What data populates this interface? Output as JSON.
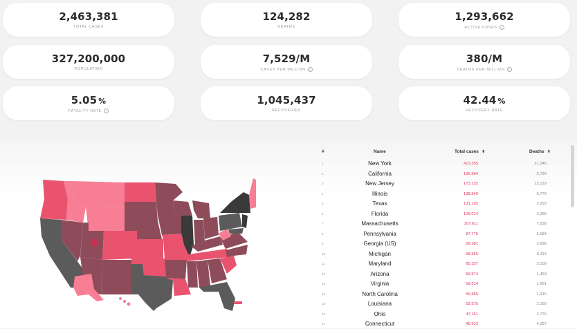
{
  "stats": [
    {
      "value": "2,463,381",
      "unit": "",
      "label": "TOTAL CASES",
      "info": false
    },
    {
      "value": "124,282",
      "unit": "",
      "label": "DEATHS",
      "info": false
    },
    {
      "value": "1,293,662",
      "unit": "",
      "label": "ACTIVE CASES",
      "info": true
    },
    {
      "value": "327,200,000",
      "unit": "",
      "label": "POPULATION",
      "info": false
    },
    {
      "value": "7,529/M",
      "unit": "",
      "label": "CASES PER MILLION",
      "info": true
    },
    {
      "value": "380/M",
      "unit": "",
      "label": "DEATHS PER MILLION",
      "info": true
    },
    {
      "value": "5.05",
      "unit": "%",
      "label": "FATALITY RATE",
      "info": true
    },
    {
      "value": "1,045,437",
      "unit": "",
      "label": "RECOVERIES",
      "info": false
    },
    {
      "value": "42.44",
      "unit": "%",
      "label": "RECOVERY RATE",
      "info": false
    }
  ],
  "table": {
    "headers": {
      "rank": "#",
      "name": "Name",
      "cases": "Total cases",
      "deaths": "Deaths"
    },
    "rows": [
      {
        "rank": "1",
        "name": "New York",
        "cases": "413,355",
        "deaths": "31,346"
      },
      {
        "rank": "2",
        "name": "California",
        "cases": "195,564",
        "deaths": "5,729"
      },
      {
        "rank": "3",
        "name": "New Jersey",
        "cases": "173,132",
        "deaths": "13,129"
      },
      {
        "rank": "4",
        "name": "Illinois",
        "cases": "138,540",
        "deaths": "6,770"
      },
      {
        "rank": "5",
        "name": "Texas",
        "cases": "131,192",
        "deaths": "2,293"
      },
      {
        "rank": "6",
        "name": "Florida",
        "cases": "109,014",
        "deaths": "3,265"
      },
      {
        "rank": "7",
        "name": "Massachusetts",
        "cases": "107,611",
        "deaths": "7,938"
      },
      {
        "rank": "8",
        "name": "Pennsylvania",
        "cases": "87,776",
        "deaths": "6,584"
      },
      {
        "rank": "9",
        "name": "Georgia (US)",
        "cases": "69,381",
        "deaths": "2,696"
      },
      {
        "rank": "10",
        "name": "Michigan",
        "cases": "68,555",
        "deaths": "6,114"
      },
      {
        "rank": "11",
        "name": "Maryland",
        "cases": "65,337",
        "deaths": "3,109"
      },
      {
        "rank": "12",
        "name": "Arizona",
        "cases": "59,974",
        "deaths": "1,463"
      },
      {
        "rank": "13",
        "name": "Virginia",
        "cases": "59,514",
        "deaths": "1,661"
      },
      {
        "rank": "14",
        "name": "North Carolina",
        "cases": "56,955",
        "deaths": "1,316"
      },
      {
        "rank": "15",
        "name": "Louisiana",
        "cases": "52,575",
        "deaths": "3,160"
      },
      {
        "rank": "16",
        "name": "Ohio",
        "cases": "47,151",
        "deaths": "2,770"
      },
      {
        "rank": "17",
        "name": "Connecticut",
        "cases": "45,913",
        "deaths": "4,287"
      }
    ]
  },
  "map": {
    "colors": {
      "pink_light": "#f77e95",
      "pink": "#e9536e",
      "rose_dark": "#8e4c5a",
      "gray": "#5b5b5b",
      "charcoal": "#3a3a3a",
      "highlight": "#c8314f"
    }
  }
}
